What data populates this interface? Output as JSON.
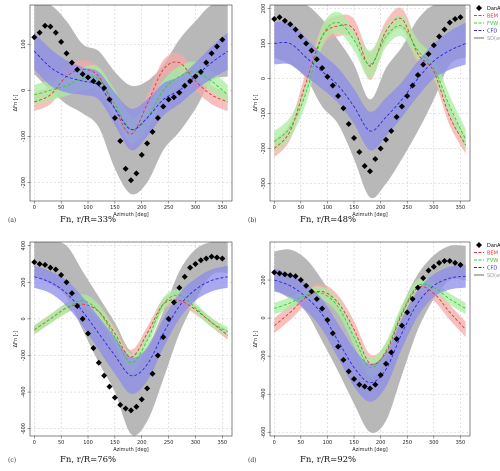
{
  "legend_labels": [
    "DanAero",
    "BEM",
    "FVW",
    "CFD",
    "SD(avg) band"
  ],
  "colors": {
    "danaero": "#000000",
    "bem": "#e03a3a",
    "fvw": "#33cc33",
    "cfd": "#2a2ad4",
    "band_gray": "#b4b4b4",
    "band_bem": "#f5aaaa",
    "band_fvw": "#a9eea0",
    "band_cfd": "#8c8cea"
  },
  "chart_data": [
    {
      "type": "line",
      "panel_label": "(a)",
      "caption": "Fn, r/R=33%",
      "xlabel": "Azimuth [deg]",
      "ylabel": "ΔFn [-]",
      "xlim": [
        -8,
        368
      ],
      "ylim": [
        -240,
        185
      ],
      "xticks": [
        0,
        50,
        100,
        150,
        200,
        250,
        300,
        350
      ],
      "yticks": [
        -200,
        -100,
        0,
        100
      ],
      "grid": true,
      "legend": false,
      "x": [
        0,
        30,
        60,
        90,
        120,
        150,
        180,
        210,
        240,
        270,
        300,
        330,
        360
      ],
      "danaero": {
        "x": [
          0,
          10,
          20,
          30,
          40,
          50,
          60,
          70,
          80,
          90,
          100,
          110,
          120,
          130,
          140,
          150,
          160,
          170,
          180,
          190,
          200,
          210,
          220,
          230,
          240,
          250,
          260,
          270,
          280,
          290,
          300,
          310,
          320,
          330,
          340,
          350
        ],
        "y": [
          115,
          125,
          140,
          138,
          125,
          105,
          80,
          60,
          45,
          35,
          28,
          20,
          15,
          5,
          -20,
          -60,
          -110,
          -170,
          -195,
          -180,
          -140,
          -115,
          -90,
          -60,
          -35,
          -20,
          -15,
          -5,
          10,
          20,
          30,
          40,
          60,
          80,
          95,
          110
        ]
      },
      "series": [
        {
          "name": "BEM",
          "values": [
            -25,
            -10,
            30,
            45,
            30,
            -40,
            -95,
            -30,
            45,
            60,
            20,
            -10,
            -25
          ],
          "band": [
            20,
            20,
            20,
            20,
            20,
            25,
            25,
            20,
            20,
            20,
            20,
            20,
            20
          ]
        },
        {
          "name": "FVW",
          "values": [
            -10,
            0,
            10,
            25,
            25,
            -30,
            -85,
            -60,
            0,
            30,
            40,
            20,
            -10
          ],
          "band": [
            22,
            22,
            22,
            25,
            25,
            30,
            30,
            25,
            22,
            22,
            22,
            22,
            22
          ]
        },
        {
          "name": "CFD",
          "values": [
            85,
            50,
            30,
            20,
            10,
            -40,
            -85,
            -60,
            -20,
            0,
            30,
            60,
            85
          ],
          "band": [
            40,
            40,
            35,
            30,
            30,
            35,
            45,
            40,
            35,
            30,
            30,
            35,
            40
          ]
        }
      ],
      "danaero_band": {
        "lower": [
          35,
          0,
          -30,
          -50,
          -80,
          -170,
          -225,
          -200,
          -130,
          -90,
          -40,
          20,
          30
        ],
        "upper": [
          185,
          185,
          150,
          100,
          85,
          40,
          10,
          20,
          55,
          110,
          150,
          185,
          185
        ]
      }
    },
    {
      "type": "line",
      "panel_label": "(b)",
      "caption": "Fn, r/R=48%",
      "xlabel": "Azimuth [deg]",
      "ylabel": "ΔFn [-]",
      "xlim": [
        -8,
        368
      ],
      "ylim": [
        -350,
        210
      ],
      "xticks": [
        0,
        50,
        100,
        150,
        200,
        250,
        300,
        350
      ],
      "yticks": [
        -300,
        -200,
        -100,
        0,
        100,
        200
      ],
      "grid": true,
      "legend": true,
      "x": [
        0,
        30,
        60,
        90,
        120,
        150,
        180,
        210,
        240,
        270,
        300,
        330,
        360
      ],
      "danaero": {
        "x": [
          0,
          10,
          20,
          30,
          40,
          50,
          60,
          70,
          80,
          90,
          100,
          110,
          120,
          130,
          140,
          150,
          160,
          170,
          180,
          190,
          200,
          210,
          220,
          230,
          240,
          250,
          260,
          270,
          280,
          290,
          300,
          310,
          320,
          330,
          340,
          350
        ],
        "y": [
          170,
          175,
          165,
          155,
          140,
          120,
          100,
          80,
          55,
          30,
          5,
          -20,
          -50,
          -85,
          -130,
          -170,
          -210,
          -250,
          -265,
          -230,
          -200,
          -175,
          -150,
          -110,
          -80,
          -50,
          -20,
          10,
          40,
          70,
          95,
          120,
          140,
          160,
          170,
          175
        ]
      },
      "series": [
        {
          "name": "BEM",
          "values": [
            -200,
            -150,
            -10,
            120,
            150,
            140,
            35,
            135,
            170,
            70,
            20,
            -110,
            -190
          ],
          "band": [
            25,
            25,
            30,
            30,
            30,
            30,
            40,
            30,
            30,
            30,
            25,
            25,
            25
          ]
        },
        {
          "name": "FVW",
          "values": [
            -180,
            -140,
            -40,
            120,
            160,
            110,
            40,
            120,
            150,
            80,
            30,
            -80,
            -175
          ],
          "band": [
            30,
            30,
            30,
            30,
            30,
            30,
            40,
            30,
            30,
            30,
            30,
            30,
            30
          ]
        },
        {
          "name": "CFD",
          "values": [
            100,
            100,
            60,
            20,
            -20,
            -80,
            -150,
            -110,
            -60,
            0,
            50,
            80,
            100
          ],
          "band": [
            60,
            60,
            55,
            50,
            50,
            50,
            55,
            55,
            50,
            50,
            50,
            55,
            60
          ]
        }
      ],
      "danaero_band": {
        "lower": [
          60,
          40,
          0,
          -80,
          -130,
          -230,
          -340,
          -300,
          -230,
          -150,
          -60,
          40,
          60
        ],
        "upper": [
          210,
          210,
          210,
          170,
          110,
          40,
          -60,
          30,
          90,
          170,
          210,
          210,
          210
        ]
      }
    },
    {
      "type": "line",
      "panel_label": "(c)",
      "caption": "Fn, r/R=76%",
      "xlabel": "Azimuth [deg]",
      "ylabel": "ΔFn [-]",
      "xlim": [
        -8,
        368
      ],
      "ylim": [
        -640,
        420
      ],
      "xticks": [
        0,
        50,
        100,
        150,
        200,
        250,
        300,
        350
      ],
      "yticks": [
        -600,
        -400,
        -200,
        0,
        200,
        400
      ],
      "grid": true,
      "legend": false,
      "x": [
        0,
        30,
        60,
        90,
        120,
        150,
        180,
        210,
        240,
        270,
        300,
        330,
        360
      ],
      "danaero": {
        "x": [
          0,
          10,
          20,
          30,
          40,
          50,
          60,
          70,
          80,
          90,
          100,
          110,
          120,
          130,
          140,
          150,
          160,
          170,
          180,
          190,
          200,
          210,
          220,
          230,
          240,
          250,
          260,
          270,
          280,
          290,
          300,
          310,
          320,
          330,
          340,
          350
        ],
        "y": [
          310,
          300,
          295,
          280,
          270,
          240,
          200,
          140,
          70,
          0,
          -80,
          -160,
          -240,
          -310,
          -370,
          -430,
          -470,
          -490,
          -500,
          -480,
          -440,
          -380,
          -300,
          -200,
          -100,
          0,
          90,
          170,
          230,
          280,
          300,
          320,
          330,
          340,
          335,
          330
        ]
      },
      "series": [
        {
          "name": "BEM",
          "values": [
            -60,
            0,
            60,
            80,
            40,
            -80,
            -210,
            -80,
            80,
            100,
            50,
            -20,
            -90
          ],
          "band": [
            25,
            25,
            25,
            30,
            30,
            35,
            40,
            35,
            30,
            30,
            25,
            25,
            25
          ]
        },
        {
          "name": "FVW",
          "values": [
            -60,
            0,
            60,
            100,
            40,
            -100,
            -240,
            -120,
            80,
            130,
            60,
            -20,
            -70
          ],
          "band": [
            25,
            25,
            30,
            35,
            40,
            45,
            50,
            40,
            35,
            30,
            25,
            25,
            25
          ]
        },
        {
          "name": "CFD",
          "values": [
            230,
            200,
            140,
            40,
            -80,
            -200,
            -310,
            -250,
            -80,
            70,
            160,
            210,
            230
          ],
          "band": [
            60,
            60,
            70,
            80,
            90,
            100,
            100,
            90,
            80,
            70,
            60,
            60,
            60
          ]
        }
      ],
      "danaero_band": {
        "lower": [
          230,
          190,
          120,
          -60,
          -240,
          -400,
          -630,
          -560,
          -330,
          -80,
          100,
          240,
          250
        ],
        "upper": [
          420,
          420,
          400,
          260,
          120,
          -20,
          -180,
          -150,
          40,
          260,
          380,
          420,
          420
        ]
      }
    },
    {
      "type": "line",
      "panel_label": "(d)",
      "caption": "Fn, r/R=92%",
      "xlabel": "Azimuth [deg]",
      "ylabel": "ΔFn [-]",
      "xlim": [
        -8,
        368
      ],
      "ylim": [
        -620,
        400
      ],
      "xticks": [
        0,
        50,
        100,
        150,
        200,
        250,
        300,
        350
      ],
      "yticks": [
        -600,
        -400,
        -200,
        0,
        200
      ],
      "grid": true,
      "legend": true,
      "x": [
        0,
        30,
        60,
        90,
        120,
        150,
        180,
        210,
        240,
        270,
        300,
        330,
        360
      ],
      "danaero": {
        "x": [
          0,
          10,
          20,
          30,
          40,
          50,
          60,
          70,
          80,
          90,
          100,
          110,
          120,
          130,
          140,
          150,
          160,
          170,
          180,
          190,
          200,
          210,
          220,
          230,
          240,
          250,
          260,
          270,
          280,
          290,
          300,
          310,
          320,
          330,
          340,
          350
        ],
        "y": [
          240,
          235,
          230,
          225,
          220,
          200,
          170,
          140,
          100,
          50,
          -10,
          -80,
          -150,
          -220,
          -280,
          -320,
          -350,
          -360,
          -370,
          -350,
          -300,
          -240,
          -180,
          -110,
          -40,
          30,
          100,
          160,
          210,
          250,
          270,
          290,
          300,
          300,
          290,
          280
        ]
      },
      "series": [
        {
          "name": "BEM",
          "values": [
            -40,
            30,
            110,
            140,
            80,
            -60,
            -240,
            -180,
            20,
            160,
            130,
            30,
            -60
          ],
          "band": [
            40,
            40,
            40,
            40,
            40,
            45,
            50,
            45,
            40,
            40,
            40,
            40,
            40
          ]
        },
        {
          "name": "FVW",
          "values": [
            50,
            80,
            120,
            130,
            60,
            -100,
            -260,
            -170,
            30,
            170,
            160,
            100,
            50
          ],
          "band": [
            30,
            30,
            30,
            35,
            40,
            45,
            50,
            45,
            40,
            35,
            30,
            30,
            30
          ]
        },
        {
          "name": "CFD",
          "values": [
            200,
            170,
            110,
            20,
            -120,
            -260,
            -340,
            -270,
            -80,
            80,
            170,
            210,
            220
          ],
          "band": [
            60,
            60,
            70,
            80,
            90,
            100,
            100,
            90,
            80,
            70,
            60,
            60,
            60
          ]
        }
      ],
      "danaero_band": {
        "lower": [
          150,
          100,
          30,
          -120,
          -280,
          -450,
          -600,
          -540,
          -300,
          -60,
          100,
          200,
          200
        ],
        "upper": [
          350,
          360,
          310,
          200,
          60,
          -100,
          -260,
          -200,
          60,
          230,
          330,
          380,
          380
        ]
      }
    }
  ]
}
